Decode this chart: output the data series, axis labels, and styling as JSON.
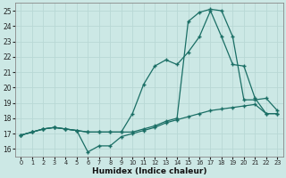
{
  "xlabel": "Humidex (Indice chaleur)",
  "background_color": "#cce8e5",
  "line_color": "#1a6e65",
  "grid_color": "#b8d8d5",
  "xlim": [
    -0.5,
    23.5
  ],
  "ylim": [
    15.5,
    25.5
  ],
  "xticks": [
    0,
    1,
    2,
    3,
    4,
    5,
    6,
    7,
    8,
    9,
    10,
    11,
    12,
    13,
    14,
    15,
    16,
    17,
    18,
    19,
    20,
    21,
    22,
    23
  ],
  "yticks": [
    16,
    17,
    18,
    19,
    20,
    21,
    22,
    23,
    24,
    25
  ],
  "line1_x": [
    0,
    1,
    2,
    3,
    4,
    5,
    6,
    7,
    8,
    9,
    10,
    11,
    12,
    13,
    14,
    15,
    16,
    17,
    18,
    19,
    20,
    21,
    22,
    23
  ],
  "line1_y": [
    16.9,
    17.1,
    17.3,
    17.4,
    17.3,
    17.2,
    15.8,
    16.2,
    16.2,
    16.8,
    17.0,
    17.2,
    17.4,
    17.7,
    17.9,
    18.1,
    18.3,
    18.5,
    18.6,
    18.7,
    18.8,
    18.9,
    18.3,
    18.3
  ],
  "line2_x": [
    0,
    1,
    2,
    3,
    4,
    5,
    6,
    7,
    8,
    9,
    10,
    11,
    12,
    13,
    14,
    15,
    16,
    17,
    18,
    19,
    20,
    21,
    22,
    23
  ],
  "line2_y": [
    16.9,
    17.1,
    17.3,
    17.4,
    17.3,
    17.2,
    17.1,
    17.1,
    17.1,
    17.1,
    18.3,
    20.2,
    21.4,
    21.8,
    21.5,
    22.3,
    23.3,
    25.0,
    23.3,
    21.5,
    21.4,
    19.3,
    18.3,
    18.3
  ],
  "line3_x": [
    0,
    1,
    2,
    3,
    4,
    5,
    6,
    7,
    8,
    9,
    10,
    11,
    12,
    13,
    14,
    15,
    16,
    17,
    18,
    19,
    20,
    21,
    22,
    23
  ],
  "line3_y": [
    16.9,
    17.1,
    17.3,
    17.4,
    17.3,
    17.2,
    17.1,
    17.1,
    17.1,
    17.1,
    17.1,
    17.3,
    17.5,
    17.8,
    18.0,
    24.3,
    24.9,
    25.1,
    25.0,
    23.3,
    19.2,
    19.2,
    19.3,
    18.5
  ]
}
